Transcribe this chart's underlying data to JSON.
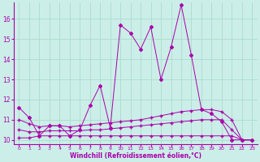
{
  "xlabel": "Windchill (Refroidissement éolien,°C)",
  "bg_color": "#cceee8",
  "grid_color": "#aaddcc",
  "line_color": "#aa00aa",
  "x": [
    0,
    1,
    2,
    3,
    4,
    5,
    6,
    7,
    8,
    9,
    10,
    11,
    12,
    13,
    14,
    15,
    16,
    17,
    18,
    19,
    20,
    21,
    22,
    23
  ],
  "y_main": [
    11.6,
    11.1,
    10.2,
    10.7,
    10.7,
    10.2,
    10.5,
    11.7,
    12.7,
    10.6,
    15.7,
    15.3,
    14.5,
    15.6,
    13.0,
    14.6,
    16.7,
    14.2,
    11.5,
    11.3,
    10.9,
    10.0,
    10.0,
    10.0
  ],
  "y_low": [
    10.1,
    10.1,
    10.2,
    10.2,
    10.2,
    10.2,
    10.2,
    10.2,
    10.2,
    10.2,
    10.2,
    10.2,
    10.2,
    10.2,
    10.2,
    10.2,
    10.2,
    10.2,
    10.2,
    10.2,
    10.2,
    10.2,
    10.0,
    10.0
  ],
  "y_mid": [
    10.5,
    10.4,
    10.4,
    10.45,
    10.45,
    10.45,
    10.45,
    10.5,
    10.5,
    10.55,
    10.6,
    10.65,
    10.7,
    10.75,
    10.8,
    10.85,
    10.9,
    10.95,
    11.0,
    11.0,
    11.0,
    10.5,
    10.0,
    10.0
  ],
  "y_upper": [
    11.0,
    10.8,
    10.65,
    10.7,
    10.7,
    10.65,
    10.7,
    10.75,
    10.8,
    10.85,
    10.9,
    10.95,
    11.0,
    11.1,
    11.2,
    11.3,
    11.4,
    11.45,
    11.5,
    11.5,
    11.4,
    11.0,
    10.0,
    10.0
  ],
  "ylim": [
    9.8,
    16.8
  ],
  "xlim": [
    -0.5,
    23.5
  ],
  "yticks": [
    10,
    11,
    12,
    13,
    14,
    15,
    16
  ],
  "xticks": [
    0,
    1,
    2,
    3,
    4,
    5,
    6,
    7,
    8,
    9,
    10,
    11,
    12,
    13,
    14,
    15,
    16,
    17,
    18,
    19,
    20,
    21,
    22,
    23
  ]
}
